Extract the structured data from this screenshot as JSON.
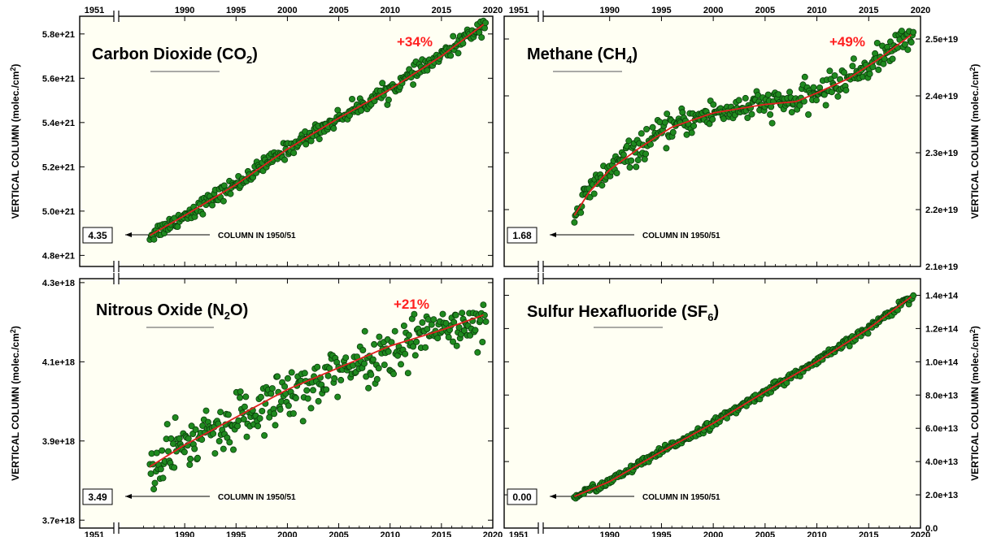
{
  "colors": {
    "panel_bg": "#fffff3",
    "point_fill": "#1f8a1f",
    "point_stroke": "#0b3d0b",
    "fit_line": "#e02020",
    "percent_text": "#ff2020"
  },
  "ylabel": "VERTICAL COLUMN (molec./cm",
  "ylabel_sup": "2",
  "ylabel_tail": ")",
  "break_year_label": "1951",
  "x_ticks": [
    "1990",
    "1995",
    "2000",
    "2005",
    "2010",
    "2015",
    "2020"
  ],
  "chart_data": [
    {
      "type": "scatter",
      "title": "Carbon Dioxide (CO",
      "title_sub": "2",
      "title_tail": ")",
      "change": "+34%",
      "baseline_box": "4.35",
      "baseline_note": "COLUMN IN 1950/51",
      "xlim": [
        1985,
        2020
      ],
      "ylim": [
        4.75e+21,
        5.88e+21
      ],
      "y_ticks": [
        "4.8e+21",
        "5.0e+21",
        "5.2e+21",
        "5.4e+21",
        "5.6e+21",
        "5.8e+21"
      ],
      "y_tick_values": [
        4.8e+21,
        5e+21,
        5.2e+21,
        5.4e+21,
        5.6e+21,
        5.8e+21
      ],
      "x_range": [
        1986.6,
        2019.3
      ],
      "fit": [
        [
          1986.6,
          4.89e+21
        ],
        [
          1990,
          4.98e+21
        ],
        [
          1995,
          5.12e+21
        ],
        [
          2000,
          5.28e+21
        ],
        [
          2005,
          5.42e+21
        ],
        [
          2010,
          5.55e+21
        ],
        [
          2015,
          5.7e+21
        ],
        [
          2019.3,
          5.85e+21
        ]
      ],
      "scatter": 1.8e+19,
      "n_points": 330
    },
    {
      "type": "scatter",
      "title": "Methane (CH",
      "title_sub": "4",
      "title_tail": ")",
      "change": "+49%",
      "baseline_box": "1.68",
      "baseline_note": "COLUMN IN 1950/51",
      "xlim": [
        1985,
        2020
      ],
      "ylim": [
        2.1e+19,
        2.54e+19
      ],
      "y_ticks": [
        "2.1e+19",
        "2.2e+19",
        "2.3e+19",
        "2.4e+19",
        "2.5e+19"
      ],
      "y_tick_values": [
        2.1e+19,
        2.2e+19,
        2.3e+19,
        2.4e+19,
        2.5e+19
      ],
      "x_range": [
        1986.6,
        2019.3
      ],
      "fit": [
        [
          1986.6,
          2.19e+19
        ],
        [
          1988,
          2.23e+19
        ],
        [
          1990,
          2.27e+19
        ],
        [
          1993,
          2.31e+19
        ],
        [
          1996,
          2.345e+19
        ],
        [
          2000,
          2.37e+19
        ],
        [
          2005,
          2.385e+19
        ],
        [
          2008,
          2.39e+19
        ],
        [
          2010,
          2.405e+19
        ],
        [
          2013,
          2.43e+19
        ],
        [
          2016,
          2.465e+19
        ],
        [
          2019.3,
          2.51e+19
        ]
      ],
      "scatter": 1.2e+17,
      "n_points": 330
    },
    {
      "type": "scatter",
      "title": "Nitrous Oxide (N",
      "title_sub": "2",
      "title_tail": "O)",
      "change": "+21%",
      "baseline_box": "3.49",
      "baseline_note": "COLUMN IN 1950/51",
      "xlim": [
        1985,
        2020
      ],
      "ylim": [
        3.68e+18,
        4.31e+18
      ],
      "y_ticks": [
        "3.7e+18",
        "3.9e+18",
        "4.1e+18",
        "4.3e+18"
      ],
      "y_tick_values": [
        3.7e+18,
        3.9e+18,
        4.1e+18,
        4.3e+18
      ],
      "x_range": [
        1986.6,
        2019.3
      ],
      "fit": [
        [
          1986.6,
          3.835e+18
        ],
        [
          1990,
          3.89e+18
        ],
        [
          1995,
          3.96e+18
        ],
        [
          2000,
          4.03e+18
        ],
        [
          2005,
          4.085e+18
        ],
        [
          2010,
          4.14e+18
        ],
        [
          2015,
          4.18e+18
        ],
        [
          2019.3,
          4.22e+18
        ]
      ],
      "scatter": 3e+16,
      "n_points": 330
    },
    {
      "type": "scatter",
      "title": "Sulfur Hexafluoride (SF",
      "title_sub": "6",
      "title_tail": ")",
      "change": "",
      "baseline_box": "0.00",
      "baseline_note": "COLUMN IN 1950/51",
      "xlim": [
        1985,
        2020
      ],
      "ylim": [
        0,
        150000000000000.0
      ],
      "y_ticks": [
        "0.0",
        "2.0e+13",
        "4.0e+13",
        "6.0e+13",
        "8.0e+13",
        "1.0e+14",
        "1.2e+14",
        "1.4e+14"
      ],
      "y_tick_values": [
        0,
        20000000000000.0,
        40000000000000.0,
        60000000000000.0,
        80000000000000.0,
        100000000000000.0,
        120000000000000.0,
        140000000000000.0
      ],
      "x_range": [
        1986.6,
        2019.3
      ],
      "fit": [
        [
          1986.6,
          19000000000000.0
        ],
        [
          1990,
          28000000000000.0
        ],
        [
          1995,
          46000000000000.0
        ],
        [
          2000,
          63000000000000.0
        ],
        [
          2005,
          82000000000000.0
        ],
        [
          2010,
          100000000000000.0
        ],
        [
          2015,
          120000000000000.0
        ],
        [
          2019.3,
          140000000000000.0
        ]
      ],
      "scatter": 1200000000000.0,
      "n_points": 330
    }
  ]
}
